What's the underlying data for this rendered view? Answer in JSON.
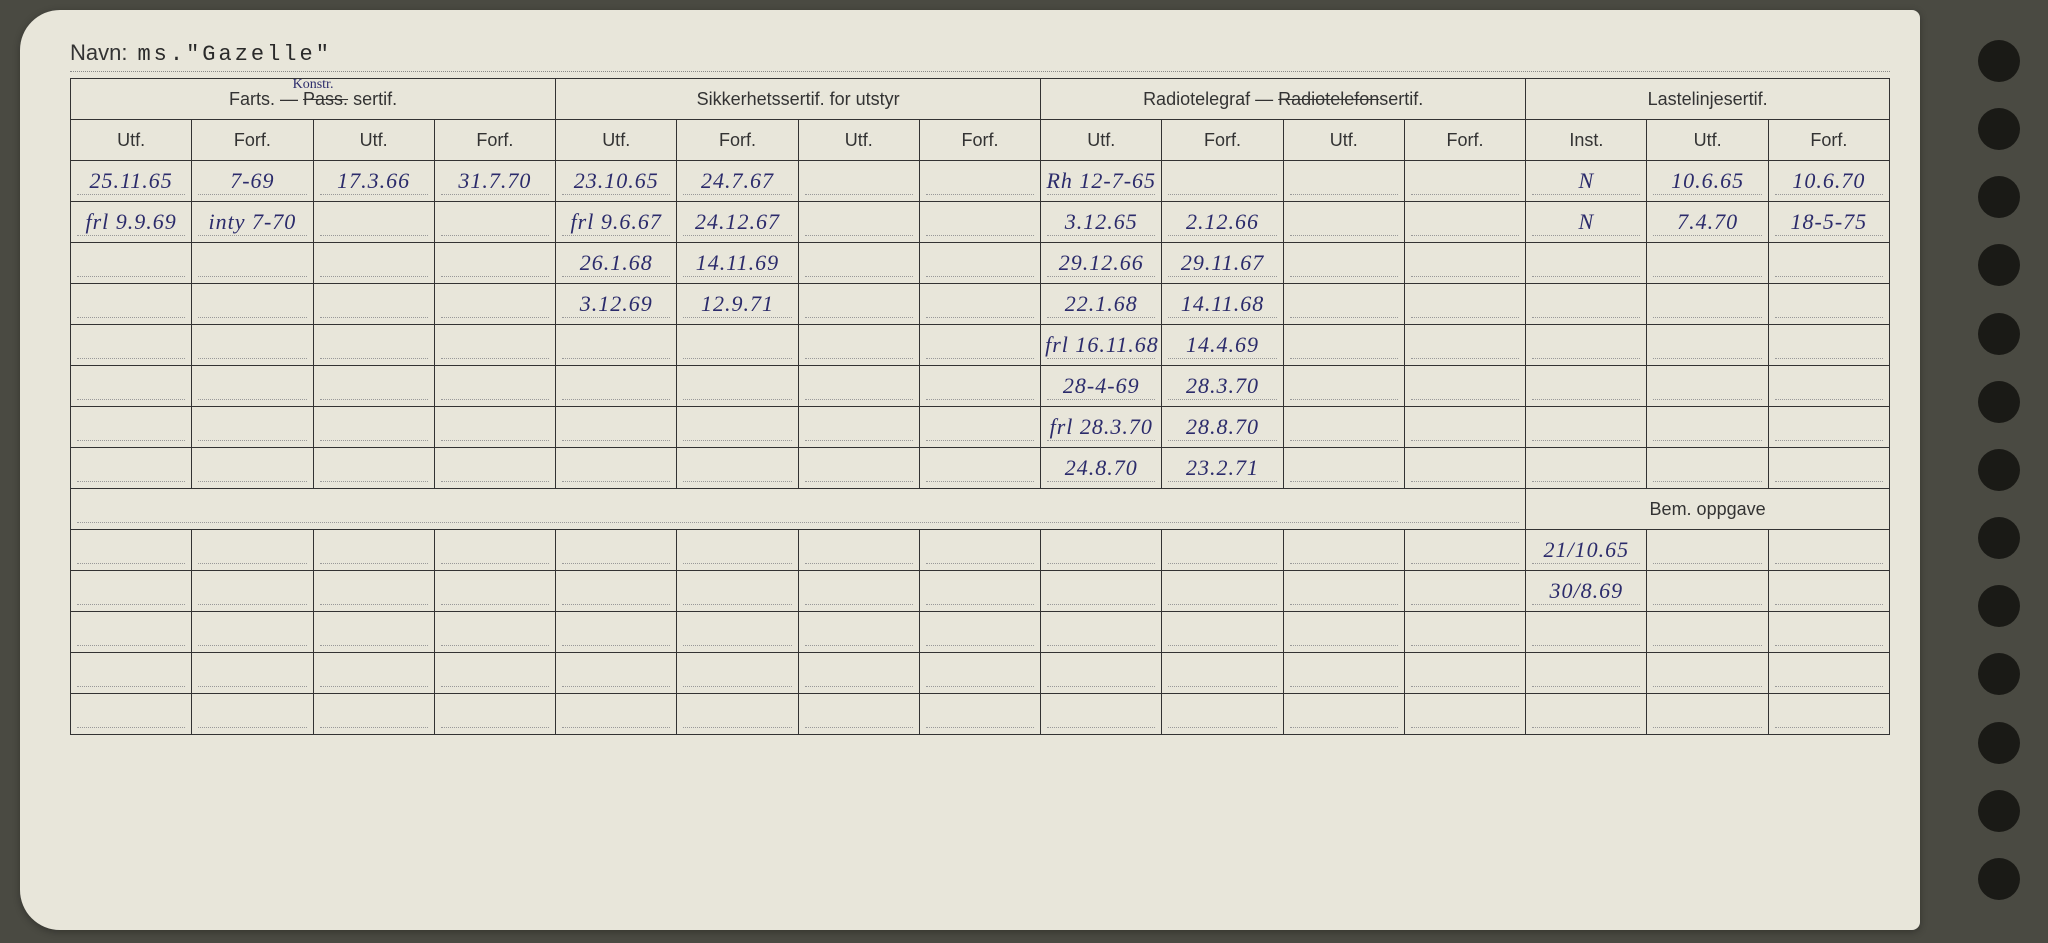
{
  "name_label": "Navn:",
  "name_value": "ms.\"Gazelle\"",
  "headers": {
    "group1": "Farts. —",
    "group1_strike": "Pass.",
    "group1_suffix": "sertif.",
    "group1_note": "Konstr.",
    "group2": "Sikkerhetssertif. for utstyr",
    "group3_pre": "Radiotelegraf —",
    "group3_strike": "Radiotelefon",
    "group3_suffix": "sertif.",
    "group4": "Lastelinjesertif.",
    "utf": "Utf.",
    "forf": "Forf.",
    "inst": "Inst.",
    "bem": "Bem. oppgave"
  },
  "rows": [
    {
      "c": [
        "25.11.65",
        "7-69",
        "17.3.66",
        "31.7.70",
        "23.10.65",
        "24.7.67",
        "",
        "",
        "Rh 12-7-65",
        "",
        "",
        "",
        "N",
        "10.6.65",
        "10.6.70"
      ]
    },
    {
      "c": [
        "frl 9.9.69",
        "inty 7-70",
        "",
        "",
        "frl 9.6.67",
        "24.12.67",
        "",
        "",
        "3.12.65",
        "2.12.66",
        "",
        "",
        "N",
        "7.4.70",
        "18-5-75"
      ]
    },
    {
      "c": [
        "",
        "",
        "",
        "",
        "26.1.68",
        "14.11.69",
        "",
        "",
        "29.12.66",
        "29.11.67",
        "",
        "",
        "",
        "",
        ""
      ]
    },
    {
      "c": [
        "",
        "",
        "",
        "",
        "3.12.69",
        "12.9.71",
        "",
        "",
        "22.1.68",
        "14.11.68",
        "",
        "",
        "",
        "",
        ""
      ]
    },
    {
      "c": [
        "",
        "",
        "",
        "",
        "",
        "",
        "",
        "",
        "frl 16.11.68",
        "14.4.69",
        "",
        "",
        "",
        "",
        ""
      ]
    },
    {
      "c": [
        "",
        "",
        "",
        "",
        "",
        "",
        "",
        "",
        "28-4-69",
        "28.3.70",
        "",
        "",
        "",
        "",
        ""
      ]
    },
    {
      "c": [
        "",
        "",
        "",
        "",
        "",
        "",
        "",
        "",
        "frl 28.3.70",
        "28.8.70",
        "",
        "",
        "",
        "",
        ""
      ]
    },
    {
      "c": [
        "",
        "",
        "",
        "",
        "",
        "",
        "",
        "",
        "24.8.70",
        "23.2.71",
        "",
        "",
        "",
        "",
        ""
      ]
    }
  ],
  "bem_rows": [
    [
      "",
      "",
      "",
      "",
      "",
      "",
      "",
      "",
      "",
      "",
      "",
      "",
      "21/10.65",
      "",
      ""
    ],
    [
      "",
      "",
      "",
      "",
      "",
      "",
      "",
      "",
      "",
      "",
      "",
      "",
      "30/8.69",
      "",
      ""
    ],
    [
      "",
      "",
      "",
      "",
      "",
      "",
      "",
      "",
      "",
      "",
      "",
      "",
      "",
      "",
      ""
    ],
    [
      "",
      "",
      "",
      "",
      "",
      "",
      "",
      "",
      "",
      "",
      "",
      "",
      "",
      "",
      ""
    ],
    [
      "",
      "",
      "",
      "",
      "",
      "",
      "",
      "",
      "",
      "",
      "",
      "",
      "",
      "",
      ""
    ]
  ],
  "colors": {
    "paper": "#e8e6da",
    "ink": "#333333",
    "handwriting": "#2b2b6b",
    "background": "#4a4a42",
    "hole": "#1a1a16"
  }
}
